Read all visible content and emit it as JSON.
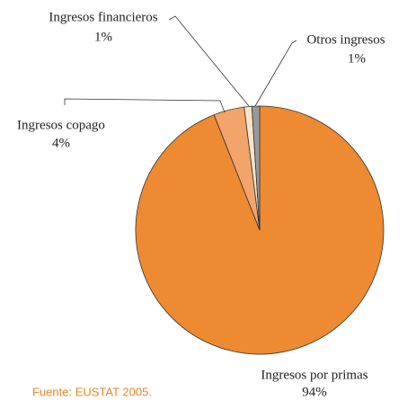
{
  "chart_data": {
    "type": "pie",
    "categories": [
      "Ingresos por primas",
      "Ingresos copago",
      "Ingresos financieros",
      "Otros ingresos"
    ],
    "values": [
      94,
      4,
      1,
      1
    ],
    "value_labels": [
      "94%",
      "4%",
      "1%",
      "1%"
    ],
    "colors": [
      "#ed8a32",
      "#f2a46a",
      "#fbe3c8",
      "#999999"
    ],
    "source": "Fuente: EUSTAT 2005."
  }
}
